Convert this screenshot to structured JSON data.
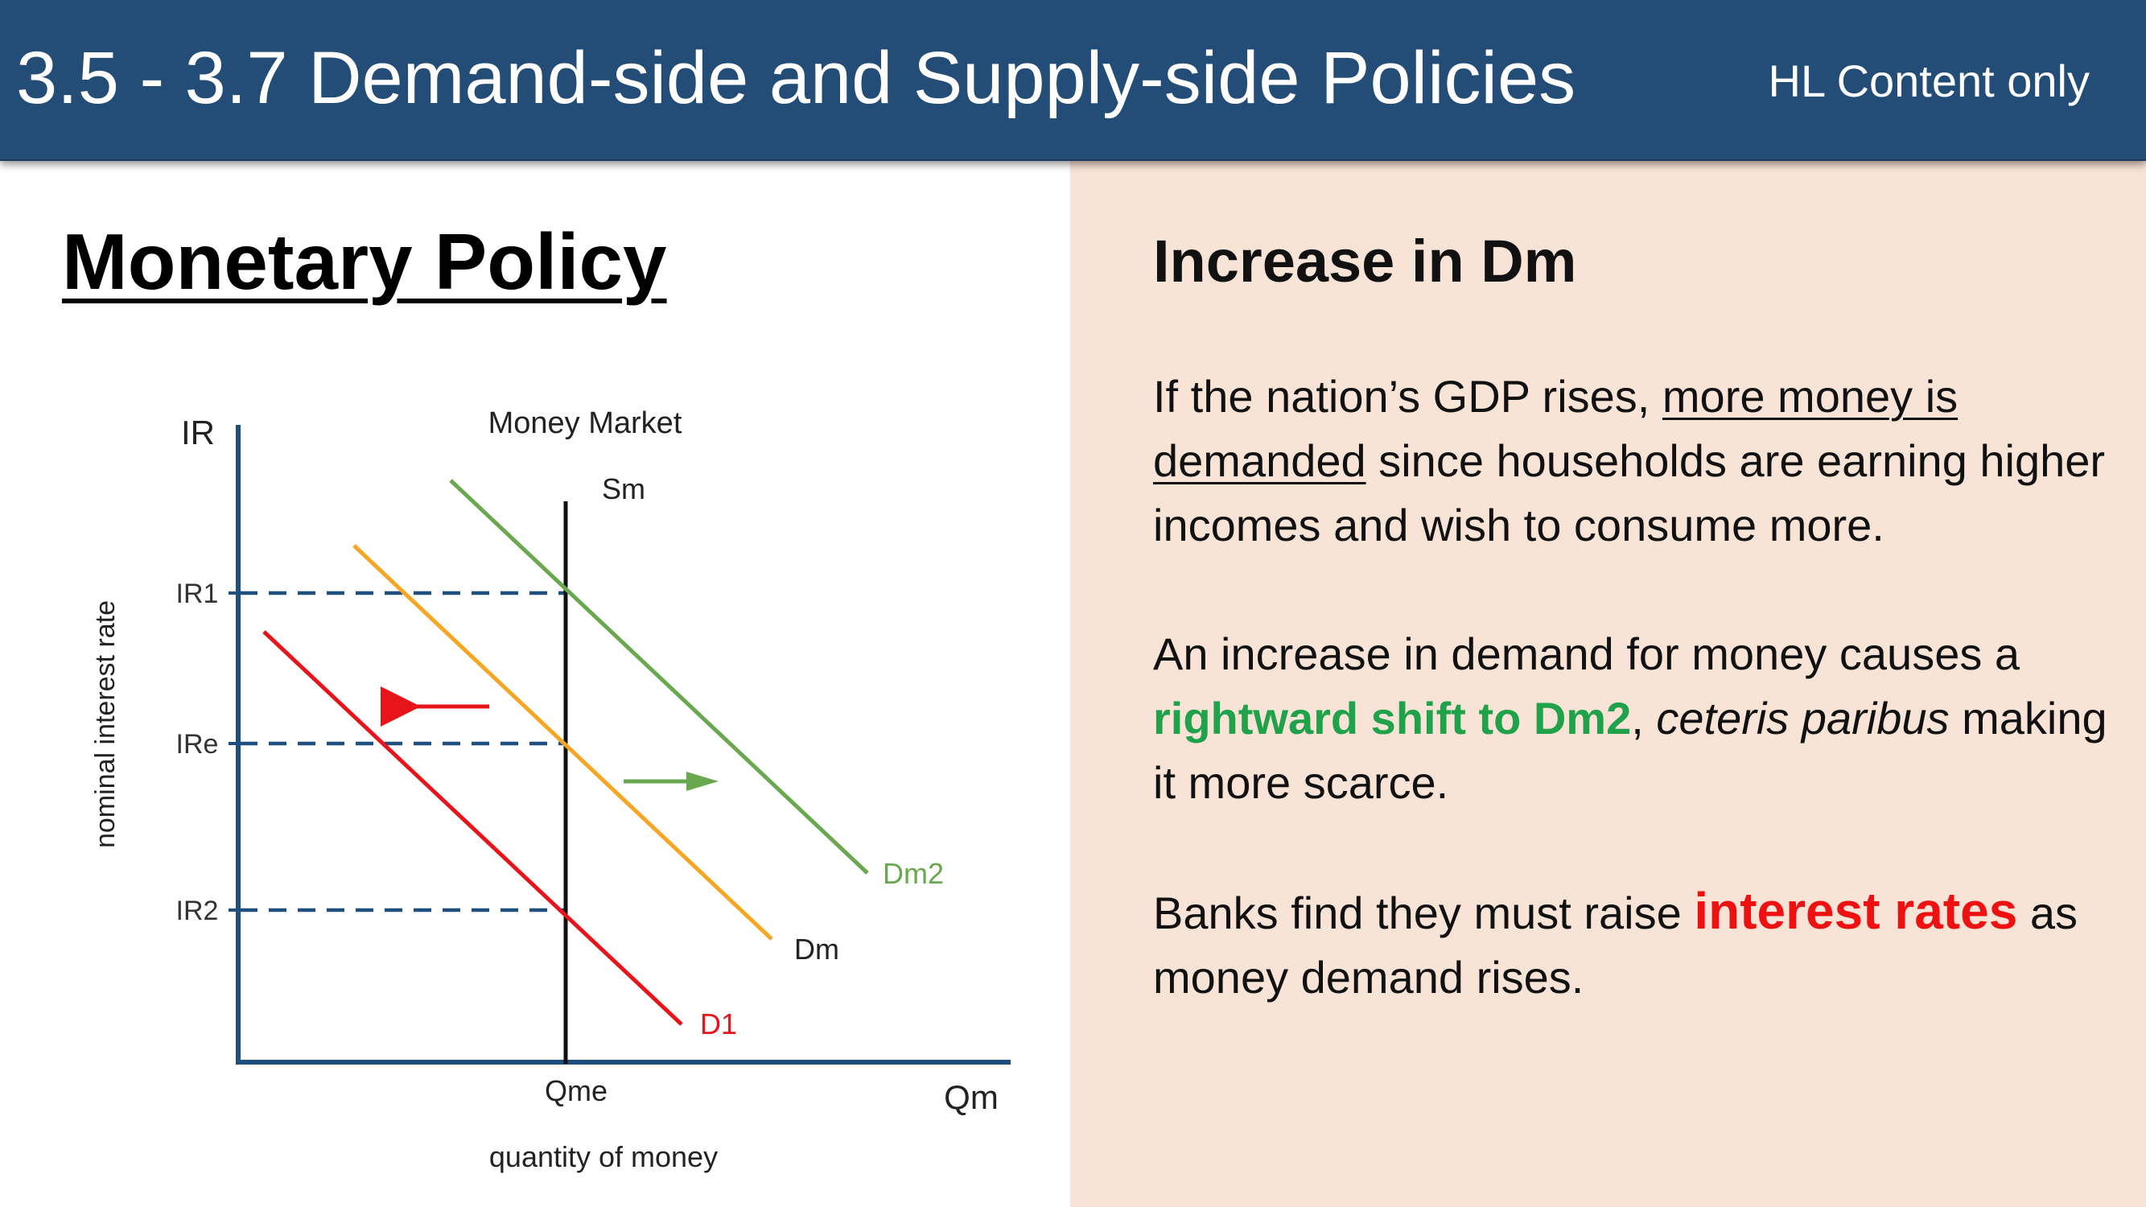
{
  "header": {
    "title": "3.5 - 3.7 Demand-side and Supply-side Policies",
    "badge": "HL Content only"
  },
  "left": {
    "section_title": "Monetary Policy"
  },
  "diagram": {
    "title": "Money Market",
    "y_axis_symbol": "IR",
    "x_axis_symbol": "Qm",
    "y_axis_label": "nominal interest rate",
    "x_axis_label": "quantity of money",
    "ir1_label": "IR1",
    "ire_label": "IRe",
    "ir2_label": "IR2",
    "qme_label": "Qme",
    "supply_label": "Sm",
    "curve_d1_label": "D1",
    "curve_dm_label": "Dm",
    "curve_dm2_label": "Dm2",
    "colors": {
      "d1": "#e8141c",
      "dm": "#f7a623",
      "dm2": "#6aa84f",
      "axis": "#1f4f7f",
      "dash": "#1f4f7f"
    }
  },
  "right": {
    "heading": "Increase in Dm",
    "p1_a": "If the nation’s GDP rises, ",
    "p1_b": "more money is demanded",
    "p1_c": " since households are earning higher incomes and wish to consume more.",
    "p2_a": "An increase in demand for money causes a ",
    "p2_b": "rightward shift to Dm2",
    "p2_c": ", ",
    "p2_d": "ceteris paribus",
    "p2_e": " making it more scarce.",
    "p3_a": "Banks find they must raise ",
    "p3_b": "interest rates",
    "p3_c": " as money demand rises."
  }
}
